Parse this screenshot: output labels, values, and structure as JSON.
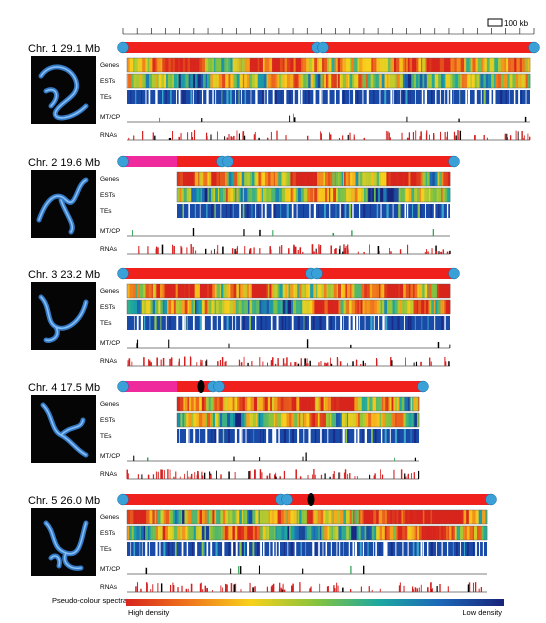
{
  "scale_bar": {
    "label": "100 kb"
  },
  "track_labels": [
    "Genes",
    "ESTs",
    "TEs",
    "MT/CP",
    "RNAs"
  ],
  "chromosomes": [
    {
      "title": "Chr. 1  29.1 Mb",
      "nor": false,
      "has_centromere_dot": false
    },
    {
      "title": "Chr. 2  19.6 Mb",
      "nor": true,
      "has_centromere_dot": false
    },
    {
      "title": "Chr. 3  23.2 Mb",
      "nor": false,
      "has_centromere_dot": false
    },
    {
      "title": "Chr. 4  17.5 Mb",
      "nor": true,
      "has_centromere_dot": true
    },
    {
      "title": "Chr. 5  26.0 Mb",
      "nor": false,
      "has_centromere_dot": true
    }
  ],
  "legend": {
    "label": "Pseudo-colour spectra:",
    "high": "High density",
    "low": "Low density"
  },
  "colors": {
    "chromosome_bar": "#f0211c",
    "nor_region": "#ee2a9c",
    "telomere": "#3aa0d8",
    "rna_tick": "#d42020",
    "dark_tick": "#000000",
    "micrograph_bg": "#050505",
    "micrograph_stain": "#3c8ee8",
    "spectrum": [
      "#d8251c",
      "#f0781c",
      "#f8d11c",
      "#88c43c",
      "#1ca8a0",
      "#1c68b8",
      "#18237a"
    ]
  }
}
